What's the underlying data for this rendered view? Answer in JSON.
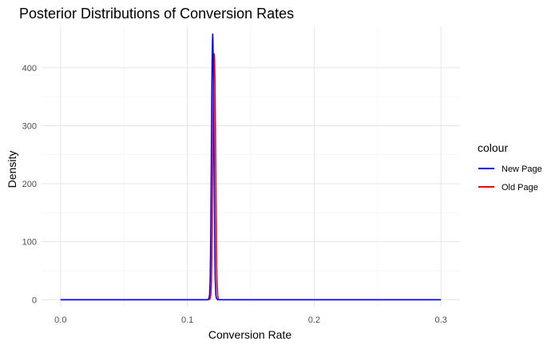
{
  "chart_data": {
    "type": "line",
    "title": "Posterior Distributions of Conversion Rates",
    "xlabel": "Conversion Rate",
    "ylabel": "Density",
    "xlim": [
      -0.015,
      0.315
    ],
    "ylim": [
      -12,
      470
    ],
    "x_ticks": [
      0.0,
      0.1,
      0.2,
      0.3
    ],
    "x_tick_labels": [
      "0.0",
      "0.1",
      "0.2",
      "0.3"
    ],
    "y_ticks": [
      0,
      100,
      200,
      300,
      400
    ],
    "y_tick_labels": [
      "0",
      "100",
      "200",
      "300",
      "400"
    ],
    "grid": true,
    "legend": {
      "title": "colour",
      "position": "right",
      "entries": [
        {
          "label": "New Page",
          "color": "#0000ff"
        },
        {
          "label": "Old Page",
          "color": "#ff0000"
        }
      ]
    },
    "series": [
      {
        "name": "New Page",
        "color": "#0000ff",
        "points": [
          [
            0.0,
            0
          ],
          [
            0.11,
            0
          ],
          [
            0.116,
            0
          ],
          [
            0.117,
            2
          ],
          [
            0.1175,
            8
          ],
          [
            0.118,
            35
          ],
          [
            0.1183,
            80
          ],
          [
            0.1186,
            150
          ],
          [
            0.1189,
            240
          ],
          [
            0.1192,
            330
          ],
          [
            0.1195,
            400
          ],
          [
            0.1198,
            445
          ],
          [
            0.12,
            458
          ],
          [
            0.1202,
            445
          ],
          [
            0.1205,
            400
          ],
          [
            0.1208,
            330
          ],
          [
            0.1211,
            240
          ],
          [
            0.1214,
            150
          ],
          [
            0.1217,
            80
          ],
          [
            0.122,
            35
          ],
          [
            0.1225,
            8
          ],
          [
            0.123,
            2
          ],
          [
            0.124,
            0
          ],
          [
            0.3,
            0
          ]
        ]
      },
      {
        "name": "Old Page",
        "color": "#ff0000",
        "points": [
          [
            0.0,
            0
          ],
          [
            0.115,
            0
          ],
          [
            0.117,
            0
          ],
          [
            0.118,
            2
          ],
          [
            0.1185,
            8
          ],
          [
            0.119,
            30
          ],
          [
            0.1194,
            75
          ],
          [
            0.1197,
            140
          ],
          [
            0.12,
            225
          ],
          [
            0.1203,
            310
          ],
          [
            0.1206,
            375
          ],
          [
            0.1209,
            412
          ],
          [
            0.1212,
            424
          ],
          [
            0.1215,
            412
          ],
          [
            0.1218,
            375
          ],
          [
            0.1221,
            310
          ],
          [
            0.1224,
            225
          ],
          [
            0.1227,
            140
          ],
          [
            0.123,
            75
          ],
          [
            0.1234,
            30
          ],
          [
            0.1239,
            8
          ],
          [
            0.1244,
            2
          ],
          [
            0.125,
            0
          ],
          [
            0.3,
            0
          ]
        ]
      }
    ]
  }
}
